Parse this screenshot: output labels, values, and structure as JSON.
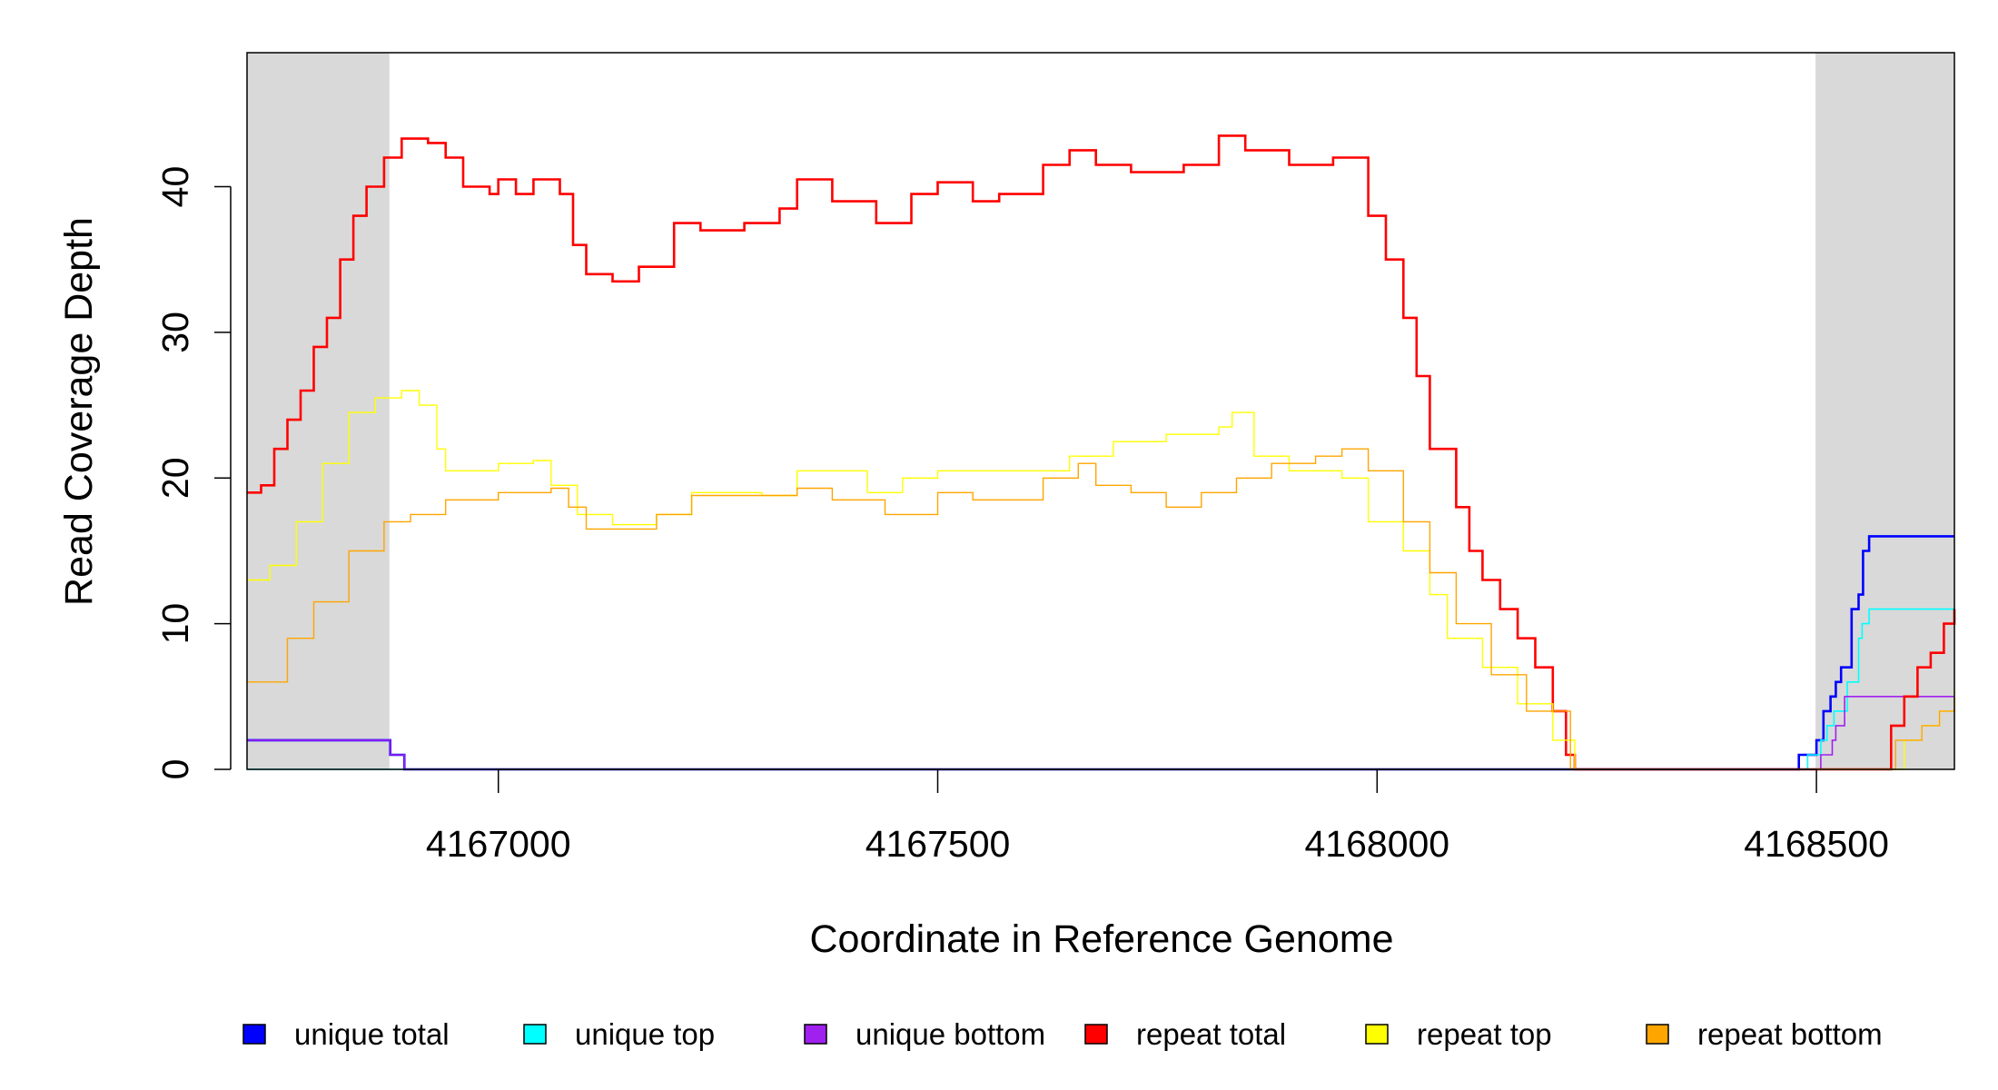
{
  "chart_data": {
    "type": "line",
    "title": "",
    "xlabel": "Coordinate in Reference Genome",
    "ylabel": "Read Coverage Depth",
    "xlim": [
      4166714,
      4168657
    ],
    "ylim": [
      0,
      49.2
    ],
    "xticks": [
      4167000,
      4167500,
      4168000,
      4168500
    ],
    "xtick_labels": [
      "4167000",
      "4167500",
      "4168000",
      "4168500"
    ],
    "yticks": [
      0,
      10,
      20,
      30,
      40
    ],
    "ytick_labels": [
      "0",
      "10",
      "20",
      "30",
      "40"
    ],
    "shaded_regions": [
      [
        4166714,
        4166876
      ],
      [
        4168499,
        4168657
      ]
    ],
    "shade_color": "#d9d9d9",
    "legend_placement": "bottom",
    "series": [
      {
        "name": "unique total",
        "color": "#0000ff",
        "width": 2.6,
        "points": [
          [
            4166714,
            2
          ],
          [
            4166877,
            1
          ],
          [
            4166893,
            0
          ],
          [
            4168480,
            1
          ],
          [
            4168500,
            2
          ],
          [
            4168508,
            4
          ],
          [
            4168516,
            5
          ],
          [
            4168522,
            6
          ],
          [
            4168528,
            7
          ],
          [
            4168540,
            11
          ],
          [
            4168548,
            12
          ],
          [
            4168553,
            15
          ],
          [
            4168560,
            16
          ],
          [
            4168657,
            16
          ]
        ]
      },
      {
        "name": "unique top",
        "color": "#00ffff",
        "width": 1.6,
        "points": [
          [
            4166714,
            0
          ],
          [
            4168490,
            1
          ],
          [
            4168505,
            2
          ],
          [
            4168512,
            3
          ],
          [
            4168520,
            4
          ],
          [
            4168535,
            6
          ],
          [
            4168548,
            9
          ],
          [
            4168552,
            10
          ],
          [
            4168560,
            11
          ],
          [
            4168657,
            11
          ]
        ]
      },
      {
        "name": "unique bottom",
        "color": "#a020f0",
        "width": 1.6,
        "points": [
          [
            4166714,
            2
          ],
          [
            4166877,
            1
          ],
          [
            4166893,
            0
          ],
          [
            4168505,
            1
          ],
          [
            4168518,
            2
          ],
          [
            4168522,
            3
          ],
          [
            4168532,
            5
          ],
          [
            4168657,
            5
          ]
        ]
      },
      {
        "name": "repeat total",
        "color": "#ff0000",
        "width": 2.6,
        "points": [
          [
            4166714,
            19
          ],
          [
            4166730,
            19.5
          ],
          [
            4166745,
            22
          ],
          [
            4166760,
            24
          ],
          [
            4166775,
            26
          ],
          [
            4166790,
            29
          ],
          [
            4166805,
            31
          ],
          [
            4166820,
            35
          ],
          [
            4166835,
            38
          ],
          [
            4166850,
            40
          ],
          [
            4166870,
            42
          ],
          [
            4166890,
            43.3
          ],
          [
            4166920,
            43
          ],
          [
            4166940,
            42
          ],
          [
            4166960,
            40
          ],
          [
            4166990,
            39.5
          ],
          [
            4167000,
            40.5
          ],
          [
            4167020,
            39.5
          ],
          [
            4167040,
            40.5
          ],
          [
            4167070,
            39.5
          ],
          [
            4167085,
            36
          ],
          [
            4167100,
            34
          ],
          [
            4167130,
            33.5
          ],
          [
            4167160,
            34.5
          ],
          [
            4167200,
            37.5
          ],
          [
            4167230,
            37
          ],
          [
            4167280,
            37.5
          ],
          [
            4167320,
            38.5
          ],
          [
            4167340,
            40.5
          ],
          [
            4167380,
            39
          ],
          [
            4167430,
            37.5
          ],
          [
            4167470,
            39.5
          ],
          [
            4167500,
            40.3
          ],
          [
            4167540,
            39
          ],
          [
            4167570,
            39.5
          ],
          [
            4167620,
            41.5
          ],
          [
            4167650,
            42.5
          ],
          [
            4167680,
            41.5
          ],
          [
            4167720,
            41
          ],
          [
            4167780,
            41.5
          ],
          [
            4167820,
            43.5
          ],
          [
            4167850,
            42.5
          ],
          [
            4167900,
            41.5
          ],
          [
            4167950,
            42
          ],
          [
            4167965,
            42
          ],
          [
            4167990,
            38
          ],
          [
            4168010,
            35
          ],
          [
            4168030,
            31
          ],
          [
            4168045,
            27
          ],
          [
            4168060,
            22
          ],
          [
            4168090,
            18
          ],
          [
            4168105,
            15
          ],
          [
            4168120,
            13
          ],
          [
            4168140,
            11
          ],
          [
            4168160,
            9
          ],
          [
            4168180,
            7
          ],
          [
            4168200,
            4
          ],
          [
            4168215,
            1
          ],
          [
            4168225,
            0
          ],
          [
            4168570,
            0
          ],
          [
            4168585,
            3
          ],
          [
            4168600,
            5
          ],
          [
            4168615,
            7
          ],
          [
            4168630,
            8
          ],
          [
            4168645,
            10
          ],
          [
            4168657,
            11
          ]
        ]
      },
      {
        "name": "repeat top",
        "color": "#ffff00",
        "width": 1.4,
        "points": [
          [
            4166714,
            13
          ],
          [
            4166740,
            14
          ],
          [
            4166770,
            17
          ],
          [
            4166800,
            21
          ],
          [
            4166830,
            24.5
          ],
          [
            4166860,
            25.5
          ],
          [
            4166890,
            26
          ],
          [
            4166910,
            25
          ],
          [
            4166930,
            22
          ],
          [
            4166940,
            20.5
          ],
          [
            4167000,
            21
          ],
          [
            4167040,
            21.2
          ],
          [
            4167060,
            19.5
          ],
          [
            4167090,
            17.5
          ],
          [
            4167130,
            16.8
          ],
          [
            4167180,
            17.5
          ],
          [
            4167220,
            19
          ],
          [
            4167300,
            18.8
          ],
          [
            4167340,
            20.5
          ],
          [
            4167380,
            20.5
          ],
          [
            4167420,
            19
          ],
          [
            4167460,
            20
          ],
          [
            4167500,
            20.5
          ],
          [
            4167560,
            20.5
          ],
          [
            4167600,
            20.5
          ],
          [
            4167650,
            21.5
          ],
          [
            4167700,
            22.5
          ],
          [
            4167760,
            23
          ],
          [
            4167820,
            23.5
          ],
          [
            4167835,
            24.5
          ],
          [
            4167860,
            21.5
          ],
          [
            4167900,
            20.5
          ],
          [
            4167960,
            20
          ],
          [
            4167990,
            17
          ],
          [
            4168030,
            15
          ],
          [
            4168060,
            12
          ],
          [
            4168080,
            9
          ],
          [
            4168120,
            7
          ],
          [
            4168160,
            4.5
          ],
          [
            4168200,
            2
          ],
          [
            4168225,
            0
          ],
          [
            4168580,
            0
          ],
          [
            4168600,
            2
          ],
          [
            4168620,
            3
          ],
          [
            4168640,
            4
          ],
          [
            4168657,
            5.5
          ]
        ]
      },
      {
        "name": "repeat bottom",
        "color": "#ffa500",
        "width": 1.4,
        "points": [
          [
            4166714,
            6
          ],
          [
            4166740,
            6
          ],
          [
            4166760,
            9
          ],
          [
            4166790,
            11.5
          ],
          [
            4166830,
            15
          ],
          [
            4166870,
            17
          ],
          [
            4166900,
            17.5
          ],
          [
            4166940,
            18.5
          ],
          [
            4167000,
            19
          ],
          [
            4167060,
            19.3
          ],
          [
            4167080,
            18
          ],
          [
            4167100,
            16.5
          ],
          [
            4167140,
            16.5
          ],
          [
            4167180,
            17.5
          ],
          [
            4167220,
            18.8
          ],
          [
            4167300,
            18.8
          ],
          [
            4167340,
            19.3
          ],
          [
            4167380,
            18.5
          ],
          [
            4167440,
            17.5
          ],
          [
            4167500,
            19
          ],
          [
            4167540,
            18.5
          ],
          [
            4167580,
            18.5
          ],
          [
            4167620,
            20
          ],
          [
            4167660,
            21
          ],
          [
            4167680,
            19.5
          ],
          [
            4167720,
            19
          ],
          [
            4167760,
            18
          ],
          [
            4167800,
            19
          ],
          [
            4167840,
            20
          ],
          [
            4167880,
            21
          ],
          [
            4167930,
            21.5
          ],
          [
            4167960,
            22
          ],
          [
            4167990,
            20.5
          ],
          [
            4168030,
            17
          ],
          [
            4168060,
            13.5
          ],
          [
            4168090,
            10
          ],
          [
            4168130,
            6.5
          ],
          [
            4168170,
            4
          ],
          [
            4168220,
            0
          ],
          [
            4168570,
            0
          ],
          [
            4168590,
            2
          ],
          [
            4168620,
            3
          ],
          [
            4168640,
            4
          ],
          [
            4168657,
            5
          ]
        ]
      }
    ]
  }
}
